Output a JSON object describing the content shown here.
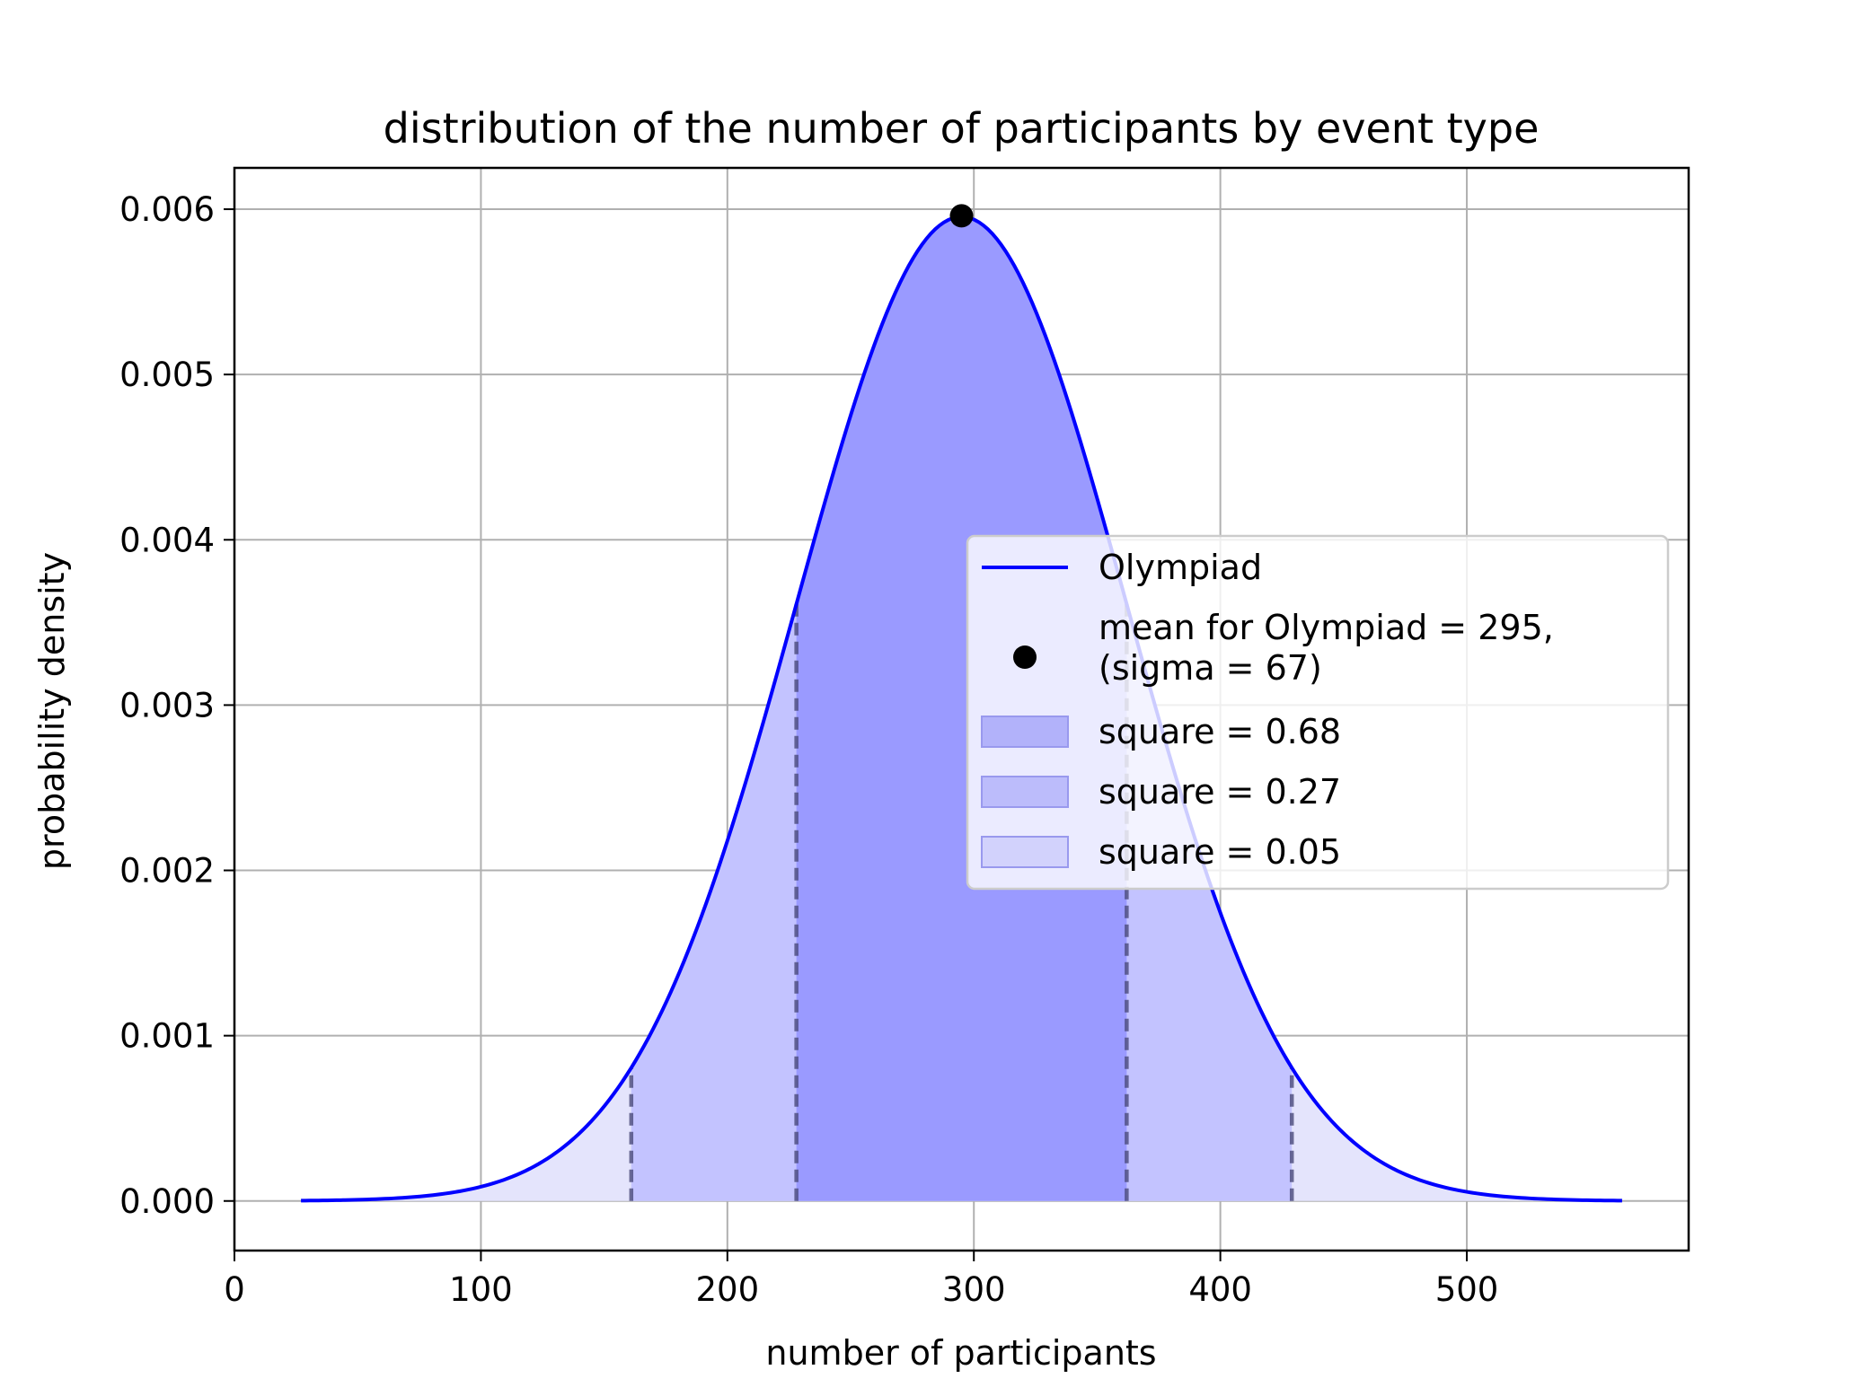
{
  "chart_data": {
    "type": "area",
    "title": "distribution of the number of participants by event type",
    "xlabel": "number of participants",
    "ylabel": "probability density",
    "xlim": [
      0,
      590
    ],
    "ylim": [
      -0.0003,
      0.00625
    ],
    "xticks": [
      0,
      100,
      200,
      300,
      400,
      500
    ],
    "xtick_labels": [
      "0",
      "100",
      "200",
      "300",
      "400",
      "500"
    ],
    "yticks": [
      0,
      0.001,
      0.002,
      0.003,
      0.004,
      0.005,
      0.006
    ],
    "ytick_labels": [
      "0.000",
      "0.001",
      "0.002",
      "0.003",
      "0.004",
      "0.005",
      "0.006"
    ],
    "grid": true,
    "distribution": {
      "kind": "normal",
      "mean": 295,
      "sigma": 67,
      "x_range": [
        27,
        563
      ],
      "color": "#0000ff"
    },
    "mean_point": {
      "x": 295,
      "y": 0.00596,
      "color": "#000000"
    },
    "bands": [
      {
        "from": 228,
        "to": 362,
        "fill": "#9a9aff"
      },
      {
        "from": 161,
        "to": 429,
        "fill": "#c3c3ff"
      },
      {
        "from": 27,
        "to": 563,
        "fill": "#e4e4fc"
      }
    ],
    "boundaries": [
      161,
      228,
      362,
      429
    ],
    "legend": {
      "position": "center-right",
      "entries": [
        {
          "kind": "line",
          "label": "Olympiad",
          "color": "#0000ff"
        },
        {
          "kind": "marker",
          "label_line1": "mean for Olympiad = 295,",
          "label_line2": "(sigma = 67)",
          "color": "#000000"
        },
        {
          "kind": "patch",
          "label": "square = 0.68",
          "fill": "#b2b2fa"
        },
        {
          "kind": "patch",
          "label": "square = 0.27",
          "fill": "#bcbcfb"
        },
        {
          "kind": "patch",
          "label": "square = 0.05",
          "fill": "#d2d2fc"
        }
      ]
    }
  }
}
